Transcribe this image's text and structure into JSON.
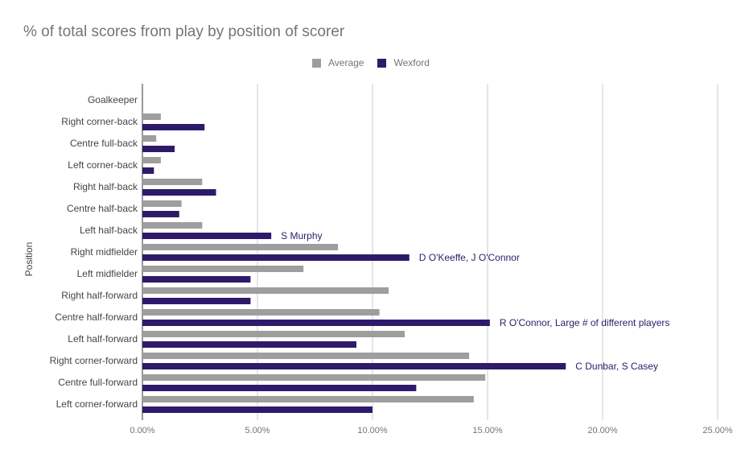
{
  "chart_data": {
    "type": "bar",
    "orientation": "horizontal",
    "title": "% of total scores from play by position of scorer",
    "ylabel": "Position",
    "xlabel": "",
    "xlim": [
      0,
      25
    ],
    "x_ticks": [
      "0.00%",
      "5.00%",
      "10.00%",
      "15.00%",
      "20.00%",
      "25.00%"
    ],
    "grid": true,
    "legend_position": "top",
    "categories": [
      "Goalkeeper",
      "Right corner-back",
      "Centre full-back",
      "Left corner-back",
      "Right half-back",
      "Centre half-back",
      "Left half-back",
      "Right midfielder",
      "Left midfielder",
      "Right half-forward",
      "Centre half-forward",
      "Left half-forward",
      "Right corner-forward",
      "Centre full-forward",
      "Left corner-forward"
    ],
    "series": [
      {
        "name": "Average",
        "color": "#9e9e9e",
        "values": [
          0,
          0.8,
          0.6,
          0.8,
          2.6,
          1.7,
          2.6,
          8.5,
          7.0,
          10.7,
          10.3,
          11.4,
          14.2,
          14.9,
          14.4
        ]
      },
      {
        "name": "Wexford",
        "color": "#2e1a6b",
        "values": [
          0,
          2.7,
          1.4,
          0.5,
          3.2,
          1.6,
          5.6,
          11.6,
          4.7,
          4.7,
          15.1,
          9.3,
          18.4,
          11.9,
          10.0
        ]
      }
    ],
    "annotations": [
      {
        "category": "Left half-back",
        "series": "Wexford",
        "text": "S Murphy"
      },
      {
        "category": "Right midfielder",
        "series": "Wexford",
        "text": "D O'Keeffe, J O'Connor"
      },
      {
        "category": "Centre half-forward",
        "series": "Wexford",
        "text": "R O'Connor, Large # of different players"
      },
      {
        "category": "Right corner-forward",
        "series": "Wexford",
        "text": "C Dunbar, S Casey"
      }
    ]
  }
}
